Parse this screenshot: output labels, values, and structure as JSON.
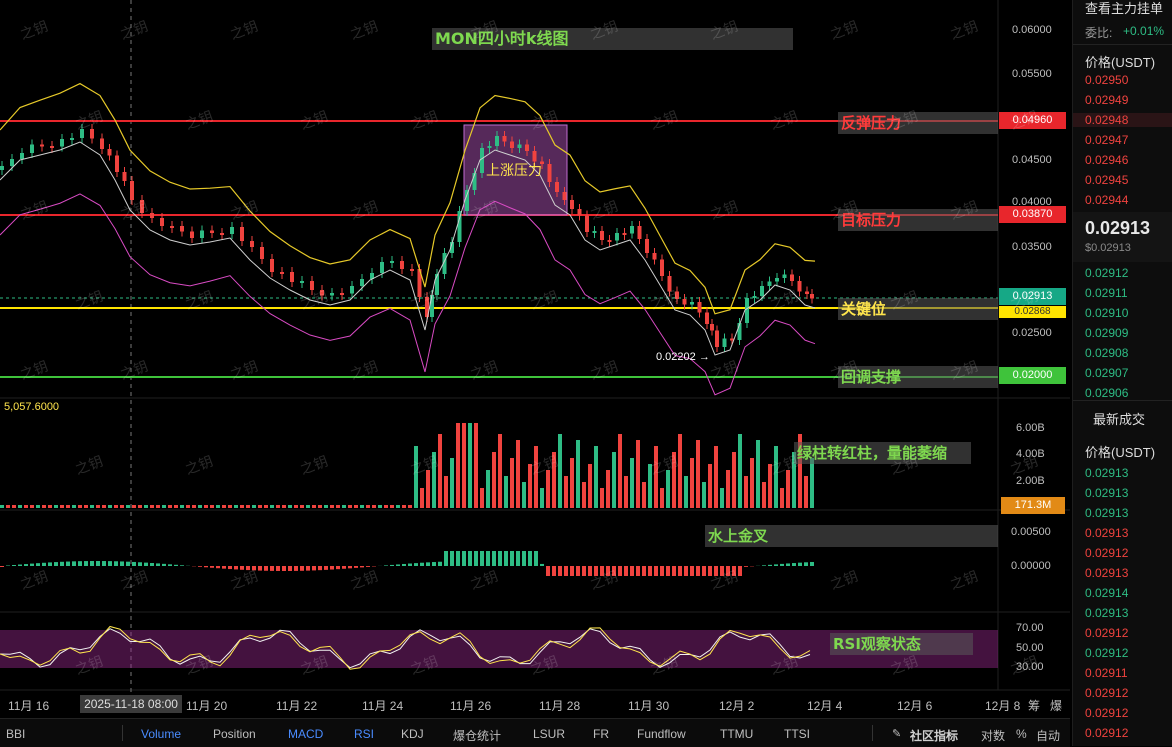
{
  "chart_title": "MON四小时k线图",
  "annotations": {
    "rebound_pressure": "反弹压力",
    "target_pressure": "目标压力",
    "up_pressure": "上涨压力",
    "key_level": "关键位",
    "pullback_support": "回调支撑",
    "volume_note": "绿柱转红柱，量能萎缩",
    "macd_note": "水上金叉",
    "rsi_note": "RSI观察状态",
    "low_marker": "0.02202 →"
  },
  "price_axis": [
    "0.06000",
    "0.05500",
    "0.04500",
    "0.04000",
    "0.03500",
    "0.02500"
  ],
  "price_tags": {
    "rebound": "0.04960",
    "target": "0.03870",
    "current": "0.02913",
    "key_partial": "0.02868",
    "support": "0.02000"
  },
  "volume_axis": [
    "6.00B",
    "4.00B",
    "2.00B"
  ],
  "volume_tag": "171.3M",
  "volume_label": "5,057.6000",
  "macd_axis": [
    "0.00500",
    "0.00000"
  ],
  "rsi_axis": [
    "70.00",
    "50.00",
    "30.00"
  ],
  "x_axis": {
    "labels": [
      "11月 16",
      "11月 20",
      "11月 22",
      "11月 24",
      "11月 26",
      "11月 28",
      "11月 30",
      "12月 2",
      "12月 4",
      "12月 6",
      "12月 8"
    ],
    "crosshair_time": "2025-11-18 08:00",
    "extra1": "筹",
    "extra2": "爆"
  },
  "toolbar": {
    "items": [
      "BBI",
      "Volume",
      "Position",
      "MACD",
      "RSI",
      "KDJ",
      "爆仓统计",
      "LSUR",
      "FR",
      "Fundflow",
      "TTMU",
      "TTSI"
    ],
    "community": "社区指标",
    "log": "对数",
    "percent": "%",
    "auto": "自动"
  },
  "orderbook": {
    "title": "查看主力挂单",
    "ratio_label": "委比:",
    "ratio_value": "+0.01%",
    "price_header": "价格(USDT)",
    "asks": [
      "0.02950",
      "0.02949",
      "0.02948",
      "0.02947",
      "0.02946",
      "0.02945",
      "0.02944"
    ],
    "last_price": "0.02913",
    "last_price_usd": "$0.02913",
    "bids": [
      "0.02912",
      "0.02911",
      "0.02910",
      "0.02909",
      "0.02908",
      "0.02907",
      "0.02906"
    ],
    "trades_title": "最新成交",
    "trades_header": "价格(USDT)",
    "trades": [
      {
        "p": "0.02913",
        "side": "buy"
      },
      {
        "p": "0.02913",
        "side": "buy"
      },
      {
        "p": "0.02913",
        "side": "buy"
      },
      {
        "p": "0.02913",
        "side": "sell"
      },
      {
        "p": "0.02912",
        "side": "sell"
      },
      {
        "p": "0.02913",
        "side": "sell"
      },
      {
        "p": "0.02914",
        "side": "buy"
      },
      {
        "p": "0.02913",
        "side": "buy"
      },
      {
        "p": "0.02912",
        "side": "sell"
      },
      {
        "p": "0.02912",
        "side": "buy"
      },
      {
        "p": "0.02911",
        "side": "sell"
      },
      {
        "p": "0.02912",
        "side": "sell"
      },
      {
        "p": "0.02912",
        "side": "sell"
      },
      {
        "p": "0.02912",
        "side": "sell"
      }
    ]
  },
  "watermark": "之钥",
  "colors": {
    "up": "#2ebd85",
    "down": "#f0433f",
    "accent": "#4a8cff"
  }
}
